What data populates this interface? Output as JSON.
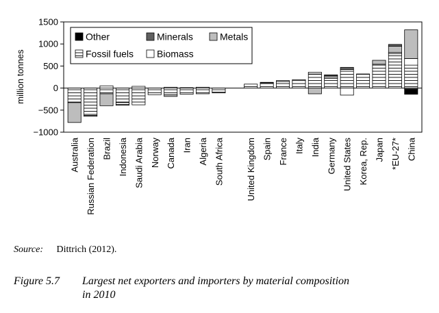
{
  "chart_data": {
    "type": "bar",
    "stacked": true,
    "ylabel": "million tonnes",
    "ylim": [
      -1000,
      1500
    ],
    "yticks": [
      -1000,
      -500,
      0,
      500,
      1000,
      1500
    ],
    "ytick_labels": [
      "−1000",
      "−500",
      "0",
      "500",
      "1000",
      "1500"
    ],
    "legend_position": "top-left inside",
    "grid": false,
    "categories": [
      "Australia",
      "Russian Federation",
      "Brazil",
      "Indonesia",
      "Saudi Arabia",
      "Norway",
      "Canada",
      "Iran",
      "Algeria",
      "South Africa",
      "",
      "United Kingdom",
      "Spain",
      "France",
      "Italy",
      "India",
      "Germany",
      "United States",
      "Korea, Rep.",
      "Japan",
      "*EU-27*",
      "China"
    ],
    "series": [
      {
        "name": "Other",
        "color": "#000000",
        "pattern": "solid",
        "values": [
          0,
          0,
          0,
          0,
          0,
          0,
          0,
          0,
          0,
          0,
          0,
          0,
          0,
          0,
          0,
          0,
          0,
          0,
          0,
          0,
          0,
          -110
        ]
      },
      {
        "name": "Minerals",
        "color": "#606060",
        "pattern": "solid",
        "values": [
          0,
          0,
          0,
          0,
          0,
          0,
          0,
          0,
          0,
          0,
          0,
          0,
          0,
          0,
          0,
          0,
          20,
          50,
          0,
          0,
          40,
          -30
        ]
      },
      {
        "name": "Metals",
        "color": "#bdbdbd",
        "pattern": "solid",
        "values": [
          -450,
          -20,
          -270,
          -20,
          0,
          0,
          -40,
          0,
          0,
          -20,
          0,
          0,
          0,
          0,
          0,
          -130,
          30,
          0,
          0,
          90,
          140,
          650
        ]
      },
      {
        "name": "Fossil fuels",
        "color": "#ffffff",
        "pattern": "hlines",
        "values": [
          -330,
          -620,
          -130,
          -330,
          -380,
          -150,
          -150,
          -140,
          -130,
          -90,
          0,
          90,
          120,
          150,
          170,
          320,
          220,
          420,
          320,
          520,
          780,
          520
        ]
      },
      {
        "name": "Biomass",
        "color": "#ffffff",
        "pattern": "solid",
        "values": [
          0,
          0,
          50,
          -40,
          40,
          0,
          20,
          10,
          20,
          0,
          0,
          0,
          10,
          20,
          20,
          40,
          30,
          -160,
          0,
          20,
          30,
          150
        ]
      }
    ]
  },
  "source": {
    "label": "Source:",
    "text": "Dittrich (2012)."
  },
  "caption": {
    "figure_number": "Figure 5.7",
    "line1": "Largest net exporters and importers by material composition",
    "line2": "in 2010"
  }
}
